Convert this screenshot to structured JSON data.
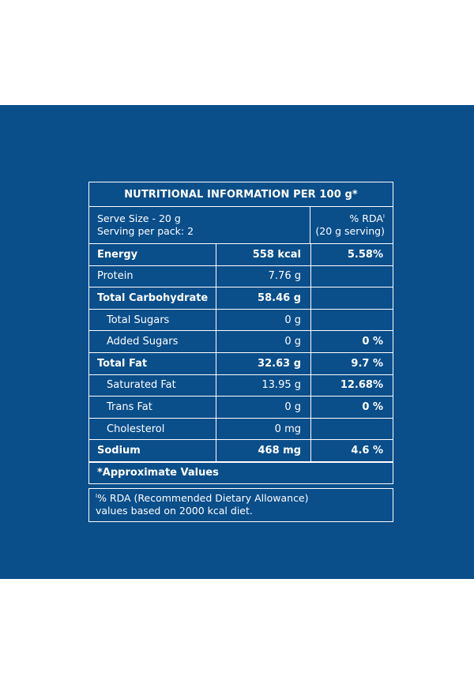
{
  "colors": {
    "panel_bg": "#0a4e8a",
    "text": "#ffffff"
  },
  "table": {
    "title": "NUTRITIONAL INFORMATION PER 100 g*",
    "serve_size": "Serve Size - 20 g",
    "serving_per_pack": "Serving per pack: 2",
    "rda_header": "% RDA",
    "rda_header_mark": "I",
    "rda_serving": "(20 g serving)",
    "rows": [
      {
        "name": "Energy",
        "amount": "558 kcal",
        "rda": "5.58%"
      },
      {
        "name": "Protein",
        "amount": "7.76 g",
        "rda": ""
      },
      {
        "name": "Total Carbohydrate",
        "amount": "58.46 g",
        "rda": ""
      },
      {
        "name": "Total Sugars",
        "amount": "0 g",
        "rda": ""
      },
      {
        "name": "Added Sugars",
        "amount": "0 g",
        "rda": "0 %"
      },
      {
        "name": "Total Fat",
        "amount": "32.63 g",
        "rda": "9.7 %"
      },
      {
        "name": "Saturated Fat",
        "amount": "13.95 g",
        "rda": "12.68%"
      },
      {
        "name": "Trans Fat",
        "amount": "0 g",
        "rda": "0 %"
      },
      {
        "name": "Cholesterol",
        "amount": "0 mg",
        "rda": ""
      },
      {
        "name": "Sodium",
        "amount": "468 mg",
        "rda": "4.6 %"
      }
    ],
    "approx_note": "*Approximate Values"
  },
  "footnote": {
    "mark": "I",
    "line1": "% RDA (Recommended Dietary Allowance)",
    "line2": "values based on 2000 kcal diet."
  }
}
